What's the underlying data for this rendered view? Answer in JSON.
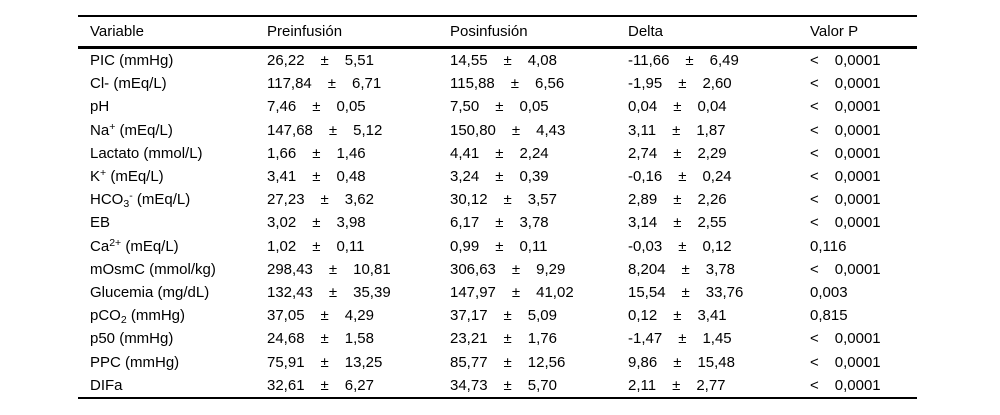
{
  "page": {
    "background": "#ffffff",
    "text_color": "#000000",
    "rule_color": "#000000"
  },
  "table": {
    "columns": [
      {
        "key": "variable",
        "label": "Variable"
      },
      {
        "key": "preinfusion",
        "label": "Preinfusión"
      },
      {
        "key": "posinfusion",
        "label": "Posinfusión"
      },
      {
        "key": "delta",
        "label": "Delta"
      },
      {
        "key": "p",
        "label": "Valor P"
      }
    ],
    "symbols": {
      "plus_minus": "±"
    },
    "rows": [
      {
        "variable": {
          "pre": "PIC (mmHg)",
          "sub": "",
          "sup": "",
          "post": ""
        },
        "preinfusion": {
          "mean": "26,22",
          "sd": "5,51"
        },
        "posinfusion": {
          "mean": "14,55",
          "sd": "4,08"
        },
        "delta": {
          "mean": "-11,66",
          "sd": "6,49"
        },
        "p": {
          "sign": "<",
          "value": "0,0001"
        }
      },
      {
        "variable": {
          "pre": "Cl- (mEq/L)",
          "sub": "",
          "sup": "",
          "post": ""
        },
        "preinfusion": {
          "mean": "117,84",
          "sd": "6,71"
        },
        "posinfusion": {
          "mean": "115,88",
          "sd": "6,56"
        },
        "delta": {
          "mean": "-1,95",
          "sd": "2,60"
        },
        "p": {
          "sign": "<",
          "value": "0,0001"
        }
      },
      {
        "variable": {
          "pre": "pH",
          "sub": "",
          "sup": "",
          "post": ""
        },
        "preinfusion": {
          "mean": "7,46",
          "sd": "0,05"
        },
        "posinfusion": {
          "mean": "7,50",
          "sd": "0,05"
        },
        "delta": {
          "mean": "0,04",
          "sd": "0,04"
        },
        "p": {
          "sign": "<",
          "value": "0,0001"
        }
      },
      {
        "variable": {
          "pre": "Na",
          "sub": "",
          "sup": "+",
          "post": " (mEq/L)"
        },
        "preinfusion": {
          "mean": "147,68",
          "sd": "5,12"
        },
        "posinfusion": {
          "mean": "150,80",
          "sd": "4,43"
        },
        "delta": {
          "mean": "3,11",
          "sd": "1,87"
        },
        "p": {
          "sign": "<",
          "value": "0,0001"
        }
      },
      {
        "variable": {
          "pre": "Lactato (mmol/L)",
          "sub": "",
          "sup": "",
          "post": ""
        },
        "preinfusion": {
          "mean": "1,66",
          "sd": "1,46"
        },
        "posinfusion": {
          "mean": "4,41",
          "sd": "2,24"
        },
        "delta": {
          "mean": "2,74",
          "sd": "2,29"
        },
        "p": {
          "sign": "<",
          "value": "0,0001"
        }
      },
      {
        "variable": {
          "pre": "K",
          "sub": "",
          "sup": "+",
          "post": " (mEq/L)"
        },
        "preinfusion": {
          "mean": "3,41",
          "sd": "0,48"
        },
        "posinfusion": {
          "mean": "3,24",
          "sd": "0,39"
        },
        "delta": {
          "mean": "-0,16",
          "sd": "0,24"
        },
        "p": {
          "sign": "<",
          "value": "0,0001"
        }
      },
      {
        "variable": {
          "pre": "HCO",
          "sub": "3",
          "sup": "-",
          "post": " (mEq/L)"
        },
        "preinfusion": {
          "mean": "27,23",
          "sd": "3,62"
        },
        "posinfusion": {
          "mean": "30,12",
          "sd": "3,57"
        },
        "delta": {
          "mean": "2,89",
          "sd": "2,26"
        },
        "p": {
          "sign": "<",
          "value": "0,0001"
        }
      },
      {
        "variable": {
          "pre": "EB",
          "sub": "",
          "sup": "",
          "post": ""
        },
        "preinfusion": {
          "mean": "3,02",
          "sd": "3,98"
        },
        "posinfusion": {
          "mean": "6,17",
          "sd": "3,78"
        },
        "delta": {
          "mean": "3,14",
          "sd": "2,55"
        },
        "p": {
          "sign": "<",
          "value": "0,0001"
        }
      },
      {
        "variable": {
          "pre": "Ca",
          "sub": "",
          "sup": "2+",
          "post": " (mEq/L)"
        },
        "preinfusion": {
          "mean": "1,02",
          "sd": "0,11"
        },
        "posinfusion": {
          "mean": "0,99",
          "sd": "0,11"
        },
        "delta": {
          "mean": "-0,03",
          "sd": "0,12"
        },
        "p": {
          "sign": "",
          "value": "0,116"
        }
      },
      {
        "variable": {
          "pre": "mOsmC (mmol/kg)",
          "sub": "",
          "sup": "",
          "post": ""
        },
        "preinfusion": {
          "mean": "298,43",
          "sd": "10,81"
        },
        "posinfusion": {
          "mean": "306,63",
          "sd": "9,29"
        },
        "delta": {
          "mean": "8,204",
          "sd": "3,78"
        },
        "p": {
          "sign": "<",
          "value": "0,0001"
        }
      },
      {
        "variable": {
          "pre": "Glucemia (mg/dL)",
          "sub": "",
          "sup": "",
          "post": ""
        },
        "preinfusion": {
          "mean": "132,43",
          "sd": "35,39"
        },
        "posinfusion": {
          "mean": "147,97",
          "sd": "41,02"
        },
        "delta": {
          "mean": "15,54",
          "sd": "33,76"
        },
        "p": {
          "sign": "",
          "value": "0,003"
        }
      },
      {
        "variable": {
          "pre": "pCO",
          "sub": "2",
          "sup": "",
          "post": " (mmHg)"
        },
        "preinfusion": {
          "mean": "37,05",
          "sd": "4,29"
        },
        "posinfusion": {
          "mean": "37,17",
          "sd": "5,09"
        },
        "delta": {
          "mean": "0,12",
          "sd": "3,41"
        },
        "p": {
          "sign": "",
          "value": "0,815"
        }
      },
      {
        "variable": {
          "pre": "p50 (mmHg)",
          "sub": "",
          "sup": "",
          "post": ""
        },
        "preinfusion": {
          "mean": "24,68",
          "sd": "1,58"
        },
        "posinfusion": {
          "mean": "23,21",
          "sd": "1,76"
        },
        "delta": {
          "mean": "-1,47",
          "sd": "1,45"
        },
        "p": {
          "sign": "<",
          "value": "0,0001"
        }
      },
      {
        "variable": {
          "pre": "PPC (mmHg)",
          "sub": "",
          "sup": "",
          "post": ""
        },
        "preinfusion": {
          "mean": "75,91",
          "sd": "13,25"
        },
        "posinfusion": {
          "mean": "85,77",
          "sd": "12,56"
        },
        "delta": {
          "mean": "9,86",
          "sd": "15,48"
        },
        "p": {
          "sign": "<",
          "value": "0,0001"
        }
      },
      {
        "variable": {
          "pre": "DIFa",
          "sub": "",
          "sup": "",
          "post": ""
        },
        "preinfusion": {
          "mean": "32,61",
          "sd": "6,27"
        },
        "posinfusion": {
          "mean": "34,73",
          "sd": "5,70"
        },
        "delta": {
          "mean": "2,11",
          "sd": "2,77"
        },
        "p": {
          "sign": "<",
          "value": "0,0001"
        }
      }
    ]
  }
}
